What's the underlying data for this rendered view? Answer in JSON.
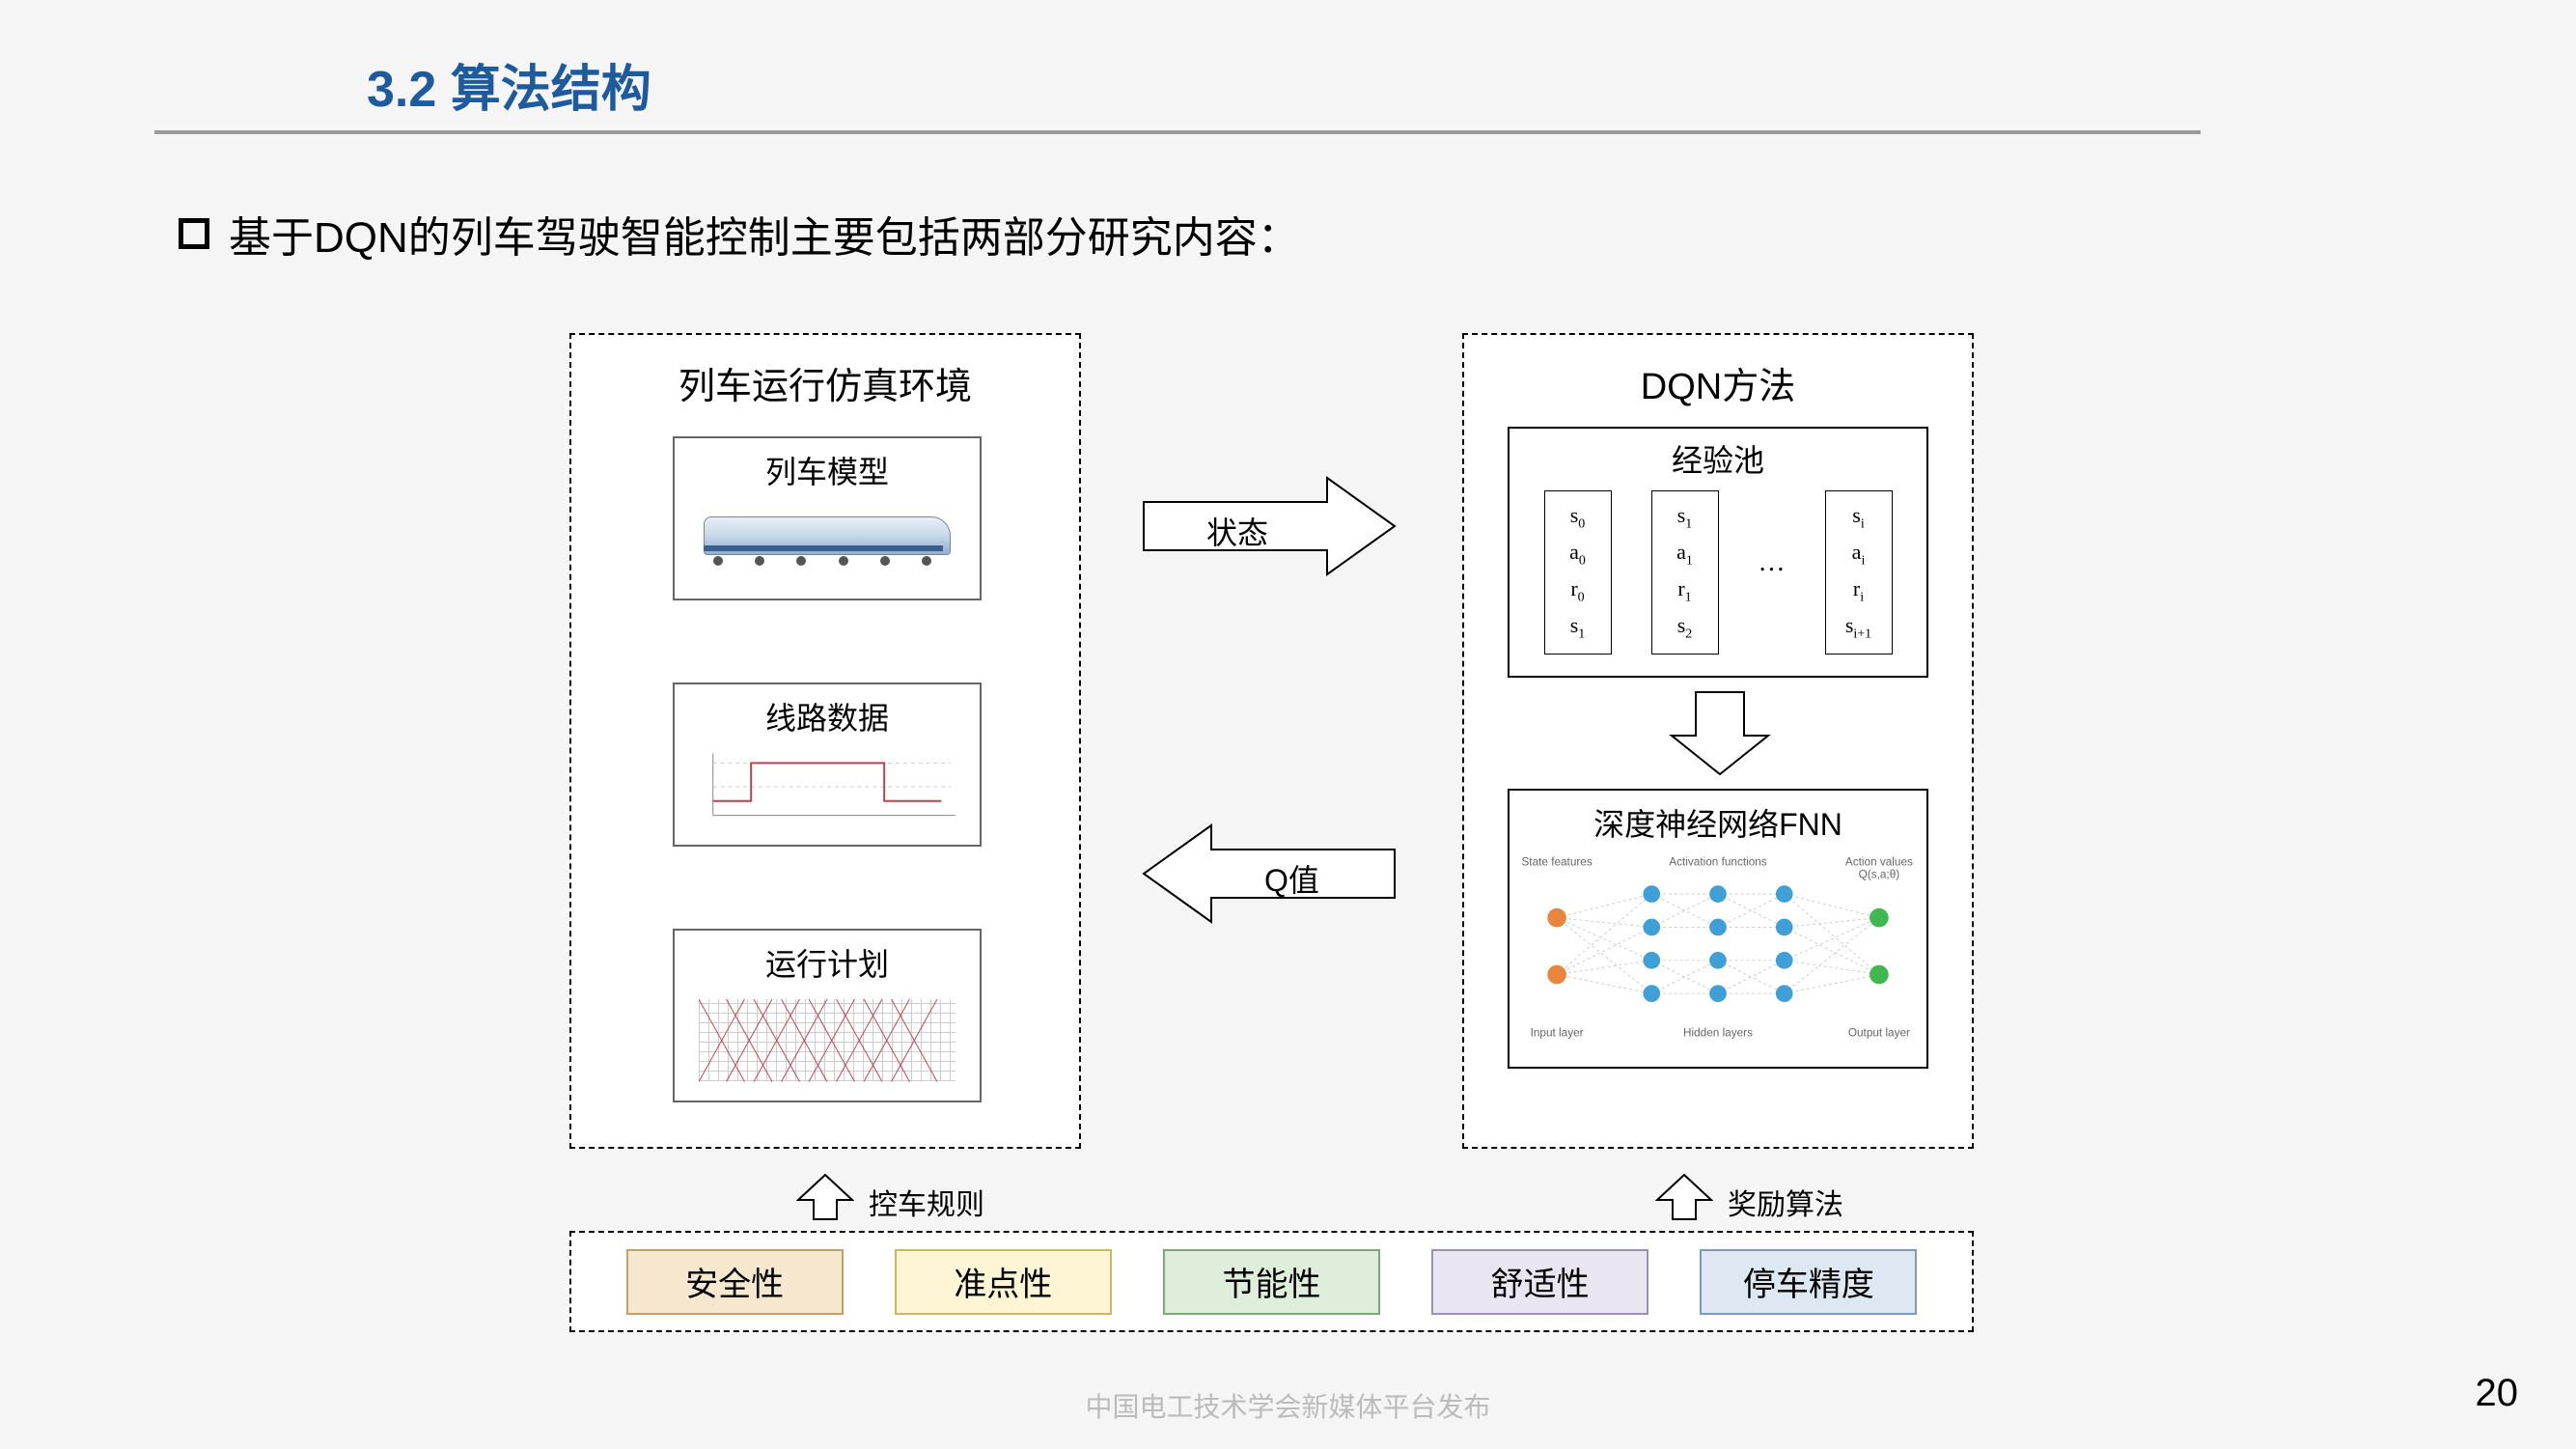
{
  "title": "3.2 算法结构",
  "title_color": "#1e5a9e",
  "bullet_text": "基于DQN的列车驾驶智能控制主要包括两部分研究内容：",
  "left_box": {
    "title": "列车运行仿真环境",
    "sub1": "列车模型",
    "sub2": "线路数据",
    "sub3": "运行计划"
  },
  "right_box": {
    "title": "DQN方法",
    "exp_pool_title": "经验池",
    "fnn_title": "深度神经网络FNN",
    "exp_items": [
      [
        "s₀",
        "a₀",
        "r₀",
        "s₁"
      ],
      [
        "s₁",
        "a₁",
        "r₁",
        "s₂"
      ],
      [
        "sᵢ",
        "aᵢ",
        "rᵢ",
        "sᵢ₊₁"
      ]
    ],
    "nn_labels": {
      "state": "State features",
      "act": "Activation functions",
      "out": "Action values",
      "out2": "Q(s,a;θ)",
      "input": "Input layer",
      "hidden": "Hidden layers",
      "output": "Output layer"
    },
    "nn_colors": {
      "input": "#e8863f",
      "hidden": "#3fa0d8",
      "output": "#3fb84f",
      "edge": "#cccccc"
    }
  },
  "arrows": {
    "state_label": "状态",
    "q_label": "Q值"
  },
  "bottom_arrows": {
    "left_label": "控车规则",
    "right_label": "奖励算法"
  },
  "criteria": [
    {
      "label": "安全性",
      "bg": "#f6e7cf",
      "border": "#c4a068"
    },
    {
      "label": "准点性",
      "bg": "#fdf5d4",
      "border": "#c9b860"
    },
    {
      "label": "节能性",
      "bg": "#dfeedb",
      "border": "#7fa878"
    },
    {
      "label": "舒适性",
      "bg": "#e9e6f2",
      "border": "#9a8fb8"
    },
    {
      "label": "停车精度",
      "bg": "#dde8f2",
      "border": "#7a9ac0"
    }
  ],
  "page_number": "20",
  "footer": "中国电工技术学会新媒体平台发布"
}
